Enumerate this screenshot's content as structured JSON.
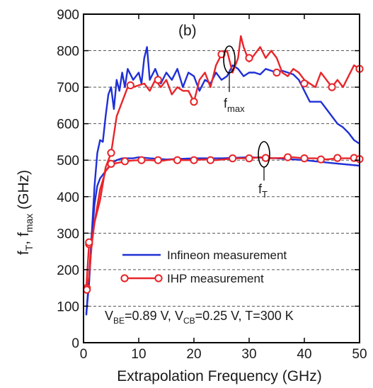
{
  "chart_data": {
    "type": "line",
    "panel_label": "(b)",
    "xlabel": "Extrapolation Frequency (GHz)",
    "ylabel": "f_T, f_max (GHz)",
    "ylabel_parts": {
      "f1": "f",
      "s1": "T",
      "sep": ", ",
      "f2": "f",
      "s2": "max",
      "unit": " (GHz)"
    },
    "xlim": [
      0,
      50
    ],
    "ylim": [
      0,
      900
    ],
    "xticks": [
      "0",
      "10",
      "20",
      "30",
      "40",
      "50"
    ],
    "yticks": [
      "0",
      "100",
      "200",
      "300",
      "400",
      "500",
      "600",
      "700",
      "800",
      "900"
    ],
    "grid": "horizontal dashed",
    "legend_position": "lower-center",
    "annotations": {
      "fmax": {
        "main": "f",
        "sub": "max"
      },
      "ft": {
        "main": "f",
        "sub": "T"
      },
      "conditions": {
        "v1": "V",
        "v1sub": "BE",
        "t1": "=0.89 V, ",
        "v2": "V",
        "v2sub": "CB",
        "t2": "=0.25 V, T=300 K"
      }
    },
    "series": [
      {
        "name": "Infineon measurement",
        "color": "#1f2fd6",
        "marker": "none",
        "groups": [
          {
            "x": [
              0.5,
              1,
              1.5,
              2,
              2.5,
              3,
              3.5,
              4,
              4.5,
              5,
              5.5,
              6,
              6.5,
              7,
              7.5,
              8,
              9,
              10,
              10.5,
              11,
              11.5,
              12,
              13,
              14,
              15,
              16,
              17,
              18,
              19,
              20,
              21,
              22,
              23,
              24,
              25,
              26,
              27,
              28,
              29,
              30,
              31,
              32,
              33,
              34,
              35,
              36,
              37,
              38,
              39,
              40,
              41,
              42,
              43,
              44,
              45,
              46,
              47,
              48,
              49,
              50
            ],
            "y": [
              75,
              180,
              300,
              430,
              520,
              555,
              550,
              620,
              680,
              700,
              640,
              720,
              690,
              740,
              700,
              750,
              720,
              740,
              710,
              780,
              810,
              720,
              750,
              710,
              740,
              720,
              750,
              700,
              740,
              730,
              690,
              720,
              710,
              740,
              720,
              730,
              760,
              750,
              730,
              740,
              740,
              735,
              750,
              745,
              740,
              745,
              740,
              735,
              720,
              690,
              660,
              660,
              660,
              640,
              620,
              600,
              590,
              575,
              555,
              545
            ]
          },
          {
            "x": [
              0.5,
              1,
              1.5,
              2,
              2.5,
              3,
              3.5,
              4,
              4.5,
              5,
              6,
              7,
              8,
              9,
              10,
              12,
              15,
              20,
              25,
              30,
              35,
              40,
              45,
              50
            ],
            "y": [
              80,
              160,
              290,
              380,
              430,
              450,
              460,
              470,
              480,
              490,
              500,
              505,
              505,
              505,
              508,
              505,
              502,
              505,
              505,
              508,
              505,
              500,
              492,
              485
            ]
          }
        ]
      },
      {
        "name": "IHP measurement",
        "color": "#e8252a",
        "marker": "circle",
        "groups": [
          {
            "x": [
              0.5,
              1,
              1.5,
              2,
              3,
              4,
              4.5,
              5,
              6,
              7,
              8,
              9,
              10,
              11,
              12,
              13,
              14,
              15,
              16,
              17,
              18,
              19,
              20,
              21,
              22,
              23,
              24,
              25,
              26,
              27,
              28,
              28.5,
              29,
              30,
              31,
              32,
              33,
              34,
              35,
              36,
              37,
              38,
              39,
              40,
              41,
              42,
              43,
              44,
              45,
              46,
              47,
              48,
              49,
              50
            ],
            "y": [
              150,
              270,
              280,
              330,
              390,
              480,
              500,
              520,
              620,
              660,
              700,
              700,
              705,
              710,
              690,
              720,
              700,
              720,
              680,
              700,
              690,
              690,
              660,
              720,
              740,
              700,
              760,
              790,
              800,
              740,
              780,
              840,
              810,
              770,
              790,
              810,
              780,
              800,
              780,
              740,
              730,
              750,
              740,
              720,
              710,
              700,
              740,
              720,
              700,
              720,
              700,
              730,
              760,
              750
            ],
            "markers": [
              [
                0.6,
                150
              ],
              [
                1,
                270
              ],
              [
                5,
                520
              ],
              [
                8.5,
                705
              ],
              [
                13.5,
                720
              ],
              [
                20,
                660
              ],
              [
                25,
                790
              ],
              [
                30,
                780
              ],
              [
                35,
                740
              ],
              [
                40,
                710
              ],
              [
                45,
                700
              ],
              [
                50,
                750
              ]
            ]
          },
          {
            "x": [
              0.5,
              1,
              1.5,
              2,
              3,
              4,
              5,
              6,
              7,
              8,
              9,
              10,
              12,
              14,
              16,
              18,
              20,
              22,
              24,
              26,
              28,
              30,
              32,
              34,
              36,
              38,
              40,
              42,
              44,
              46,
              48,
              50
            ],
            "y": [
              145,
              180,
              270,
              330,
              420,
              470,
              488,
              492,
              495,
              498,
              499,
              500,
              500,
              498,
              502,
              500,
              500,
              502,
              500,
              503,
              505,
              505,
              508,
              505,
              506,
              508,
              505,
              505,
              502,
              505,
              505,
              503
            ],
            "markers": [
              [
                0.6,
                145
              ],
              [
                1,
                275
              ],
              [
                5,
                490
              ],
              [
                7.5,
                497
              ],
              [
                10.5,
                500
              ],
              [
                13.5,
                500
              ],
              [
                17,
                500
              ],
              [
                20,
                500
              ],
              [
                23,
                500
              ],
              [
                27,
                505
              ],
              [
                30,
                505
              ],
              [
                33,
                506
              ],
              [
                37,
                508
              ],
              [
                40,
                505
              ],
              [
                43,
                502
              ],
              [
                46,
                506
              ],
              [
                49,
                506
              ],
              [
                50,
                503
              ]
            ]
          }
        ]
      }
    ]
  }
}
